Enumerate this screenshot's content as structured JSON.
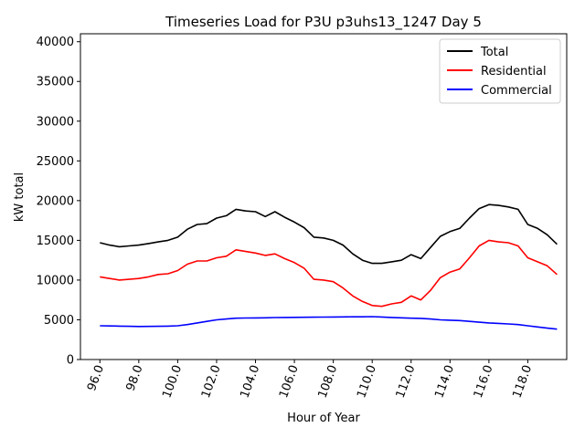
{
  "chart_data": {
    "type": "line",
    "title": "Timeseries Load for P3U p3uhs13_1247  Day 5",
    "xlabel": "Hour of Year",
    "ylabel": "kW total",
    "xlim": [
      95.0,
      120.0
    ],
    "ylim": [
      0,
      41000
    ],
    "xticks": [
      96,
      98,
      100,
      102,
      104,
      106,
      108,
      110,
      112,
      114,
      116,
      118
    ],
    "xtick_labels": [
      "96.0",
      "98.0",
      "100.0",
      "102.0",
      "104.0",
      "106.0",
      "108.0",
      "110.0",
      "112.0",
      "114.0",
      "116.0",
      "118.0"
    ],
    "yticks": [
      0,
      5000,
      10000,
      15000,
      20000,
      25000,
      30000,
      35000,
      40000
    ],
    "ytick_labels": [
      "0",
      "5000",
      "10000",
      "15000",
      "20000",
      "25000",
      "30000",
      "35000",
      "40000"
    ],
    "legend_position": "top-right",
    "x": [
      96,
      96.5,
      97,
      97.5,
      98,
      98.5,
      99,
      99.5,
      100,
      100.5,
      101,
      101.5,
      102,
      102.5,
      103,
      103.5,
      104,
      104.5,
      105,
      105.5,
      106,
      106.5,
      107,
      107.5,
      108,
      108.5,
      109,
      109.5,
      110,
      110.5,
      111,
      111.5,
      112,
      112.5,
      113,
      113.5,
      114,
      114.5,
      115,
      115.5,
      116,
      116.5,
      117,
      117.5,
      118,
      118.5,
      119,
      119.5
    ],
    "series": [
      {
        "name": "Total",
        "color": "#000000",
        "values": [
          14700,
          14400,
          14200,
          14300,
          14400,
          14600,
          14800,
          15000,
          15400,
          16400,
          17000,
          17100,
          17800,
          18100,
          18900,
          18700,
          18600,
          18000,
          18600,
          17900,
          17300,
          16600,
          15400,
          15300,
          15000,
          14400,
          13300,
          12500,
          12100,
          12100,
          12300,
          12500,
          13200,
          12700,
          14100,
          15500,
          16100,
          16500,
          17800,
          19000,
          19500,
          19400,
          19200,
          18900,
          17000,
          16500,
          15700,
          14500
        ]
      },
      {
        "name": "Residential",
        "color": "#ff0000",
        "values": [
          10400,
          10200,
          10000,
          10100,
          10200,
          10400,
          10700,
          10800,
          11200,
          12000,
          12400,
          12400,
          12800,
          13000,
          13800,
          13600,
          13400,
          13100,
          13300,
          12700,
          12200,
          11500,
          10100,
          10000,
          9800,
          9000,
          8000,
          7300,
          6800,
          6700,
          7000,
          7200,
          8000,
          7500,
          8700,
          10300,
          11000,
          11400,
          12800,
          14300,
          15000,
          14800,
          14700,
          14300,
          12800,
          12300,
          11800,
          10700
        ]
      },
      {
        "name": "Commercial",
        "color": "#0000ff",
        "values": [
          4250,
          4230,
          4200,
          4180,
          4160,
          4170,
          4180,
          4200,
          4250,
          4400,
          4600,
          4800,
          5000,
          5100,
          5200,
          5220,
          5240,
          5250,
          5280,
          5300,
          5310,
          5320,
          5330,
          5340,
          5350,
          5360,
          5370,
          5380,
          5400,
          5350,
          5300,
          5250,
          5200,
          5180,
          5100,
          5000,
          4950,
          4900,
          4800,
          4700,
          4600,
          4550,
          4480,
          4400,
          4250,
          4100,
          3950,
          3830
        ]
      }
    ]
  }
}
